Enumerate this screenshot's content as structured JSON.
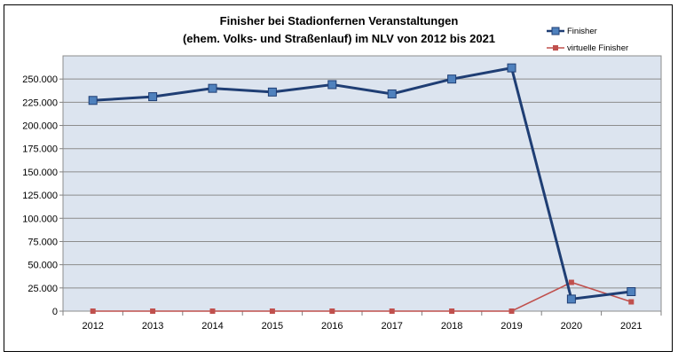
{
  "chart_data": {
    "type": "line",
    "title": "Finisher bei Stadionfernen Veranstaltungen",
    "subtitle": "(ehem. Volks- und Straßenlauf) im NLV von 2012 bis 2021",
    "xlabel": "",
    "ylabel": "",
    "categories": [
      "2012",
      "2013",
      "2014",
      "2015",
      "2016",
      "2017",
      "2018",
      "2019",
      "2020",
      "2021"
    ],
    "ylim": [
      0,
      275000
    ],
    "ytick_labels": [
      "0",
      "25.000",
      "50.000",
      "75.000",
      "100.000",
      "125.000",
      "150.000",
      "175.000",
      "200.000",
      "225.000",
      "250.000"
    ],
    "grid": true,
    "legend_position": "top-right",
    "series": [
      {
        "name": "Finisher",
        "color": "#1F3E74",
        "marker_color": "#4F81BD",
        "values": [
          227000,
          231000,
          240000,
          236000,
          244000,
          234000,
          250000,
          262000,
          13000,
          21000
        ]
      },
      {
        "name": "virtuelle Finisher",
        "color": "#C0504D",
        "marker_color": "#C0504D",
        "values": [
          0,
          0,
          0,
          0,
          0,
          0,
          0,
          0,
          31000,
          10000
        ]
      }
    ]
  }
}
